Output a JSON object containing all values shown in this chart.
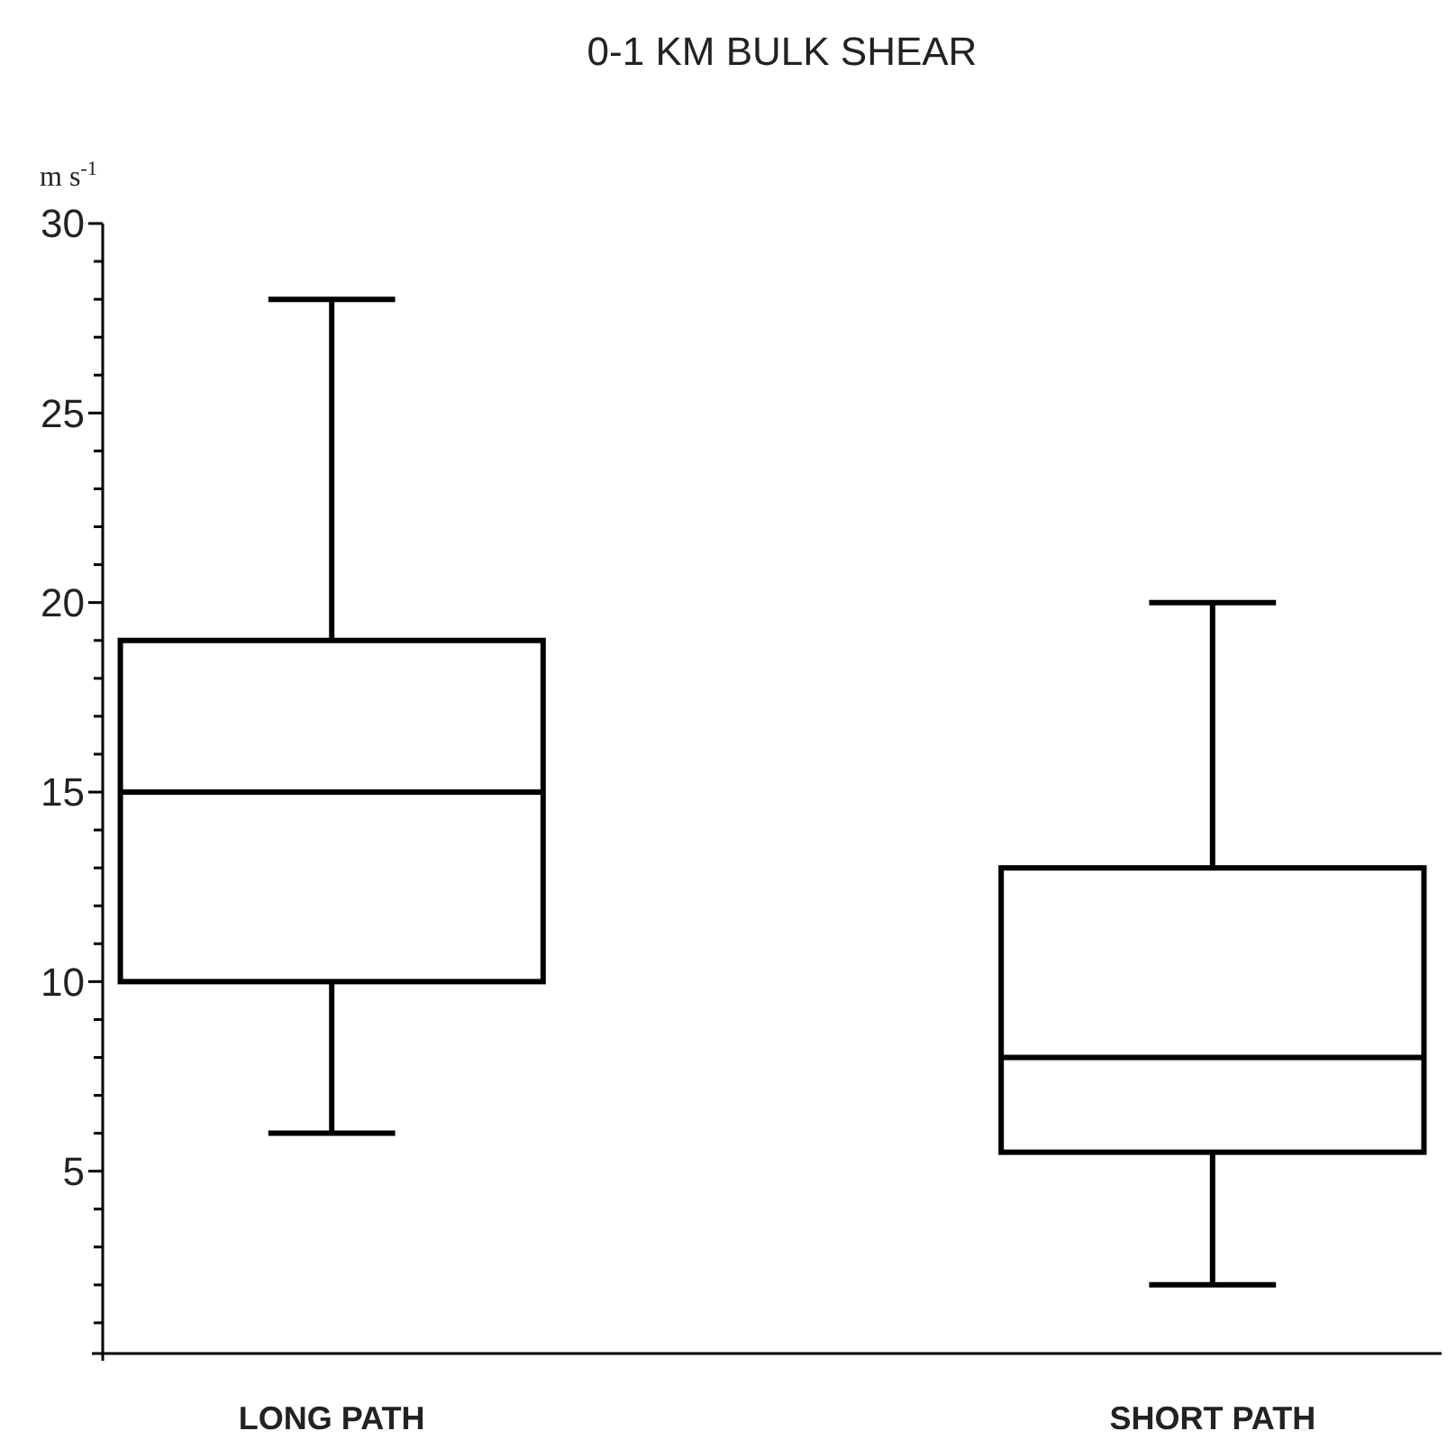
{
  "chart_data": {
    "type": "box",
    "title": "0-1 KM BULK SHEAR",
    "ylabel": "m s$^{-1}$",
    "categories": [
      "LONG PATH",
      "SHORT PATH"
    ],
    "boxes": [
      {
        "low": 6,
        "q1": 10,
        "median": 15,
        "q3": 19,
        "high": 28
      },
      {
        "low": 2,
        "q1": 5.5,
        "median": 8,
        "q3": 13,
        "high": 20
      }
    ],
    "color": "#000000",
    "ylim": [
      0,
      30
    ],
    "yticks": [
      {
        "value": 1,
        "label": null
      },
      {
        "value": 2,
        "label": null
      },
      {
        "value": 3,
        "label": null
      },
      {
        "value": 4,
        "label": null
      },
      5,
      {
        "value": 6,
        "label": null
      },
      {
        "value": 7,
        "label": null
      },
      {
        "value": 8,
        "label": null
      },
      {
        "value": 9,
        "label": null
      },
      10,
      {
        "value": 11,
        "label": null
      },
      {
        "value": 12,
        "label": null
      },
      {
        "value": 13,
        "label": null
      },
      {
        "value": 14,
        "label": null
      },
      15,
      {
        "value": 16,
        "label": null
      },
      {
        "value": 17,
        "label": null
      },
      {
        "value": 18,
        "label": null
      },
      {
        "value": 19,
        "label": null
      },
      20,
      {
        "value": 21,
        "label": null
      },
      {
        "value": 22,
        "label": null
      },
      {
        "value": 23,
        "label": null
      },
      {
        "value": 24,
        "label": null
      },
      25,
      {
        "value": 26,
        "label": null
      },
      {
        "value": 27,
        "label": null
      },
      {
        "value": 28,
        "label": null
      },
      {
        "value": 29,
        "label": null
      },
      30
    ],
    "grid": false
  }
}
